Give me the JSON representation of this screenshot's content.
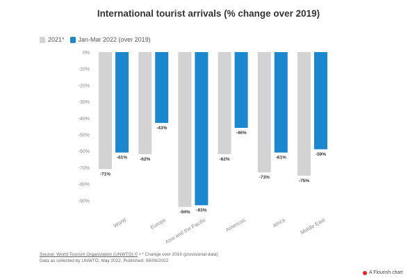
{
  "chart_data": {
    "type": "bar",
    "title": "International tourist arrivals (% change over 2019)",
    "categories": [
      "World",
      "Europe",
      "Asia and the Pacific",
      "Americas",
      "Africa",
      "Middle East"
    ],
    "series": [
      {
        "name": "2021*",
        "color": "#d3d3d3",
        "values": [
          -71,
          -62,
          -94,
          -62,
          -73,
          -75
        ]
      },
      {
        "name": "Jan-Mar 2022 (over 2019)",
        "color": "#1a87cf",
        "values": [
          -61,
          -43,
          -93,
          -46,
          -61,
          -59
        ]
      }
    ],
    "yticks": [
      0,
      -10,
      -20,
      -30,
      -40,
      -50,
      -60,
      -70,
      -80,
      -90
    ],
    "ylim": [
      -95,
      0
    ],
    "grid": false,
    "legend": "top-left"
  },
  "footer": {
    "source": "Source: World Tourism Organization (UNWTO) ©",
    "note": " • * Change over 2019 (provisional data)",
    "line2": "Data as collected by UNWTO, May 2022. Published: 06/06/2022"
  },
  "branding": "A Flourish chart"
}
